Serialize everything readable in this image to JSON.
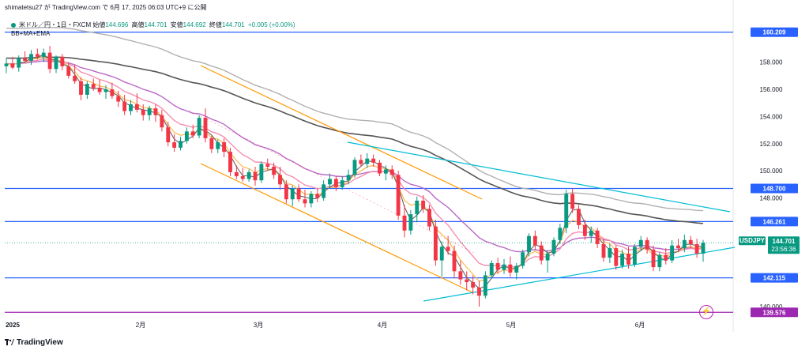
{
  "header": {
    "author": "shimatetsu27",
    "text": "shimatetsu27 が TradingView.com で 6月 17, 2025 06:03 UTC+9 に公開"
  },
  "symbol": {
    "name": "米ドル／円・1日・FXCM",
    "open_label": "始値",
    "open": "144.696",
    "high_label": "高値",
    "high": "144.701",
    "low_label": "安値",
    "low": "144.692",
    "close_label": "終値",
    "close": "144.701",
    "change": "+0.005 (+0.00%)"
  },
  "indicators": "BB+MA+EMA",
  "footer": {
    "brand": "TradingView"
  },
  "colors": {
    "up": "#089981",
    "down": "#f23645",
    "hline_blue": "#2962ff",
    "hline_purple": "#9c27b0",
    "channel_orange": "#ff9800",
    "trend_cyan": "#00bcd4",
    "bb_upper": "#b0b0b0",
    "ma_dark": "#555555",
    "purple_ma": "#ba68c8",
    "pink_ema": "#f48fb1",
    "orange_ema": "#ffb74d"
  },
  "chart_data": {
    "type": "candlestick",
    "y_axis": {
      "ticks": [
        "158.000",
        "156.000",
        "154.000",
        "152.000",
        "150.000",
        "148.000",
        "140.000"
      ],
      "range": [
        139.3,
        161.3
      ]
    },
    "x_axis": {
      "ticks": [
        "2025",
        "2月",
        "3月",
        "4月",
        "5月",
        "6月"
      ]
    },
    "price_labels": [
      {
        "text": "160.209",
        "value": 160.209,
        "color": "#2962ff"
      },
      {
        "text": "148.700",
        "value": 148.7,
        "color": "#2962ff"
      },
      {
        "text": "146.261",
        "value": 146.261,
        "color": "#2962ff"
      },
      {
        "text": "142.115",
        "value": 142.115,
        "color": "#2962ff"
      },
      {
        "text": "139.576",
        "value": 139.576,
        "color": "#9c27b0"
      }
    ],
    "current_price": {
      "symbol": "USDJPY",
      "value": "144.701",
      "countdown": "23:56:36"
    },
    "horizontal_lines": [
      160.209,
      148.7,
      146.261,
      142.115,
      139.576
    ],
    "candles": [
      [
        157.7,
        158.3,
        157.2,
        157.9
      ],
      [
        157.9,
        158.4,
        157.5,
        157.6
      ],
      [
        157.6,
        158.5,
        157.3,
        158.3
      ],
      [
        158.3,
        158.8,
        158.0,
        158.1
      ],
      [
        158.1,
        158.9,
        157.8,
        158.6
      ],
      [
        158.6,
        159.0,
        158.2,
        158.4
      ],
      [
        158.4,
        159.0,
        158.0,
        158.7
      ],
      [
        158.7,
        159.2,
        157.2,
        157.5
      ],
      [
        157.5,
        158.5,
        157.2,
        158.4
      ],
      [
        158.4,
        158.6,
        157.4,
        157.7
      ],
      [
        157.7,
        158.0,
        156.8,
        157.0
      ],
      [
        157.0,
        157.8,
        156.4,
        156.6
      ],
      [
        156.6,
        156.9,
        155.2,
        155.6
      ],
      [
        155.6,
        156.6,
        155.3,
        156.4
      ],
      [
        156.4,
        156.8,
        155.9,
        156.1
      ],
      [
        156.1,
        156.7,
        155.6,
        155.8
      ],
      [
        155.8,
        156.3,
        155.3,
        156.0
      ],
      [
        156.0,
        156.5,
        155.3,
        155.5
      ],
      [
        155.5,
        155.9,
        154.7,
        155.1
      ],
      [
        155.1,
        155.6,
        154.1,
        154.4
      ],
      [
        154.4,
        155.2,
        154.1,
        154.9
      ],
      [
        154.9,
        155.7,
        154.3,
        154.5
      ],
      [
        154.5,
        154.9,
        153.7,
        154.1
      ],
      [
        154.1,
        154.8,
        153.7,
        154.6
      ],
      [
        154.6,
        154.9,
        153.6,
        154.1
      ],
      [
        154.1,
        154.5,
        152.9,
        153.2
      ],
      [
        153.2,
        153.6,
        151.8,
        152.1
      ],
      [
        152.1,
        152.7,
        151.4,
        151.7
      ],
      [
        151.7,
        152.5,
        151.5,
        152.2
      ],
      [
        152.2,
        153.2,
        152.0,
        152.9
      ],
      [
        152.9,
        153.4,
        152.4,
        152.6
      ],
      [
        152.6,
        154.1,
        152.4,
        153.9
      ],
      [
        153.9,
        154.6,
        152.1,
        152.4
      ],
      [
        152.4,
        152.6,
        151.3,
        151.6
      ],
      [
        151.6,
        152.3,
        151.3,
        152.1
      ],
      [
        152.1,
        152.4,
        151.0,
        151.4
      ],
      [
        151.4,
        151.7,
        149.6,
        149.9
      ],
      [
        149.9,
        150.4,
        149.4,
        149.6
      ],
      [
        149.6,
        150.2,
        149.2,
        149.4
      ],
      [
        149.4,
        150.1,
        149.2,
        149.9
      ],
      [
        149.9,
        150.3,
        148.9,
        149.3
      ],
      [
        149.3,
        150.7,
        149.1,
        150.5
      ],
      [
        150.5,
        150.9,
        150.0,
        150.3
      ],
      [
        150.3,
        150.6,
        149.4,
        149.7
      ],
      [
        149.7,
        150.3,
        148.6,
        149.0
      ],
      [
        149.0,
        149.3,
        147.6,
        147.9
      ],
      [
        147.9,
        148.9,
        147.4,
        148.7
      ],
      [
        148.7,
        149.0,
        147.7,
        147.9
      ],
      [
        147.9,
        148.6,
        147.3,
        147.6
      ],
      [
        147.6,
        148.5,
        147.3,
        148.3
      ],
      [
        148.3,
        148.7,
        147.7,
        148.0
      ],
      [
        148.0,
        149.3,
        147.8,
        149.0
      ],
      [
        149.0,
        149.8,
        148.7,
        149.4
      ],
      [
        149.4,
        149.6,
        148.5,
        148.8
      ],
      [
        148.8,
        149.6,
        148.6,
        149.3
      ],
      [
        149.3,
        150.1,
        149.0,
        149.7
      ],
      [
        149.7,
        151.0,
        149.5,
        150.8
      ],
      [
        150.8,
        151.2,
        150.3,
        150.5
      ],
      [
        150.5,
        151.3,
        150.2,
        150.9
      ],
      [
        150.9,
        151.2,
        150.3,
        150.6
      ],
      [
        150.6,
        150.8,
        149.6,
        149.8
      ],
      [
        149.8,
        150.4,
        149.3,
        150.1
      ],
      [
        150.1,
        150.4,
        149.4,
        149.7
      ],
      [
        149.7,
        150.0,
        146.4,
        146.7
      ],
      [
        146.7,
        147.5,
        145.1,
        145.6
      ],
      [
        145.6,
        147.1,
        145.3,
        146.8
      ],
      [
        146.8,
        148.1,
        146.2,
        147.8
      ],
      [
        147.8,
        148.2,
        146.9,
        147.2
      ],
      [
        147.2,
        147.5,
        145.6,
        145.9
      ],
      [
        145.9,
        146.4,
        143.0,
        143.4
      ],
      [
        143.4,
        144.8,
        142.2,
        144.4
      ],
      [
        144.4,
        145.2,
        143.8,
        144.1
      ],
      [
        144.1,
        144.5,
        142.1,
        142.6
      ],
      [
        142.6,
        143.4,
        141.6,
        142.0
      ],
      [
        142.0,
        142.6,
        141.2,
        141.8
      ],
      [
        141.8,
        142.3,
        140.9,
        141.4
      ],
      [
        141.4,
        141.9,
        140.0,
        140.8
      ],
      [
        140.8,
        142.6,
        140.6,
        142.3
      ],
      [
        142.3,
        143.4,
        142.1,
        143.2
      ],
      [
        143.2,
        143.6,
        142.4,
        142.7
      ],
      [
        142.7,
        143.5,
        142.4,
        143.1
      ],
      [
        143.1,
        143.7,
        142.2,
        142.5
      ],
      [
        142.5,
        143.2,
        142.0,
        143.0
      ],
      [
        143.0,
        144.2,
        142.8,
        144.0
      ],
      [
        144.0,
        145.4,
        143.7,
        145.2
      ],
      [
        145.2,
        145.6,
        144.2,
        144.5
      ],
      [
        144.5,
        144.8,
        143.1,
        143.4
      ],
      [
        143.4,
        144.1,
        142.5,
        143.9
      ],
      [
        143.9,
        145.1,
        143.7,
        144.9
      ],
      [
        144.9,
        146.1,
        144.6,
        145.8
      ],
      [
        145.8,
        148.6,
        145.4,
        148.3
      ],
      [
        148.3,
        148.7,
        146.9,
        147.2
      ],
      [
        147.2,
        147.5,
        145.7,
        146.0
      ],
      [
        146.0,
        146.4,
        144.9,
        145.2
      ],
      [
        145.2,
        145.9,
        144.7,
        145.6
      ],
      [
        145.6,
        145.8,
        144.3,
        144.6
      ],
      [
        144.6,
        144.9,
        143.3,
        143.6
      ],
      [
        143.6,
        144.6,
        143.2,
        144.3
      ],
      [
        144.3,
        144.5,
        142.7,
        143.0
      ],
      [
        143.0,
        144.2,
        142.8,
        143.9
      ],
      [
        143.9,
        144.4,
        142.8,
        143.1
      ],
      [
        143.1,
        144.6,
        142.9,
        144.4
      ],
      [
        144.4,
        145.2,
        144.1,
        144.9
      ],
      [
        144.9,
        145.1,
        143.9,
        144.2
      ],
      [
        144.2,
        144.5,
        142.6,
        142.9
      ],
      [
        142.9,
        144.0,
        142.6,
        143.8
      ],
      [
        143.8,
        144.3,
        143.1,
        143.4
      ],
      [
        143.4,
        144.9,
        143.2,
        144.5
      ],
      [
        144.5,
        145.0,
        144.0,
        144.3
      ],
      [
        144.3,
        145.3,
        144.0,
        144.9
      ],
      [
        144.9,
        145.2,
        144.3,
        144.6
      ],
      [
        144.6,
        145.0,
        143.6,
        143.9
      ],
      [
        143.9,
        144.9,
        143.3,
        144.7
      ]
    ]
  }
}
